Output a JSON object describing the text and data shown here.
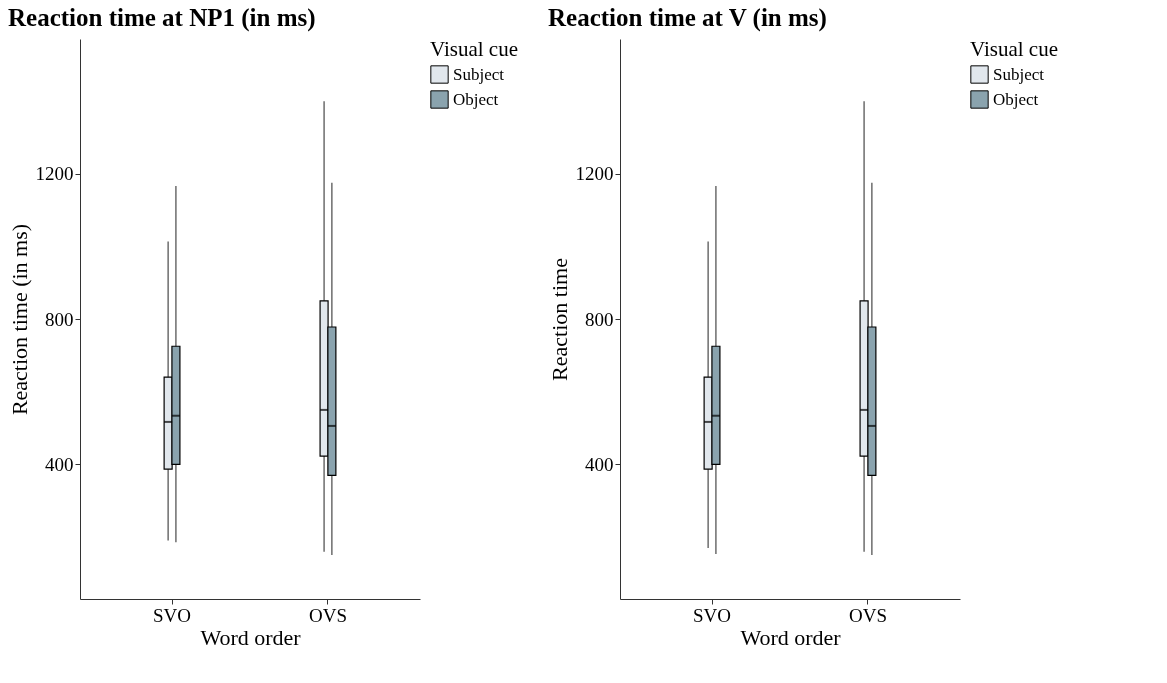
{
  "chart_data": [
    {
      "type": "box",
      "title": "Reaction time at NP1 (in ms)",
      "xlabel": "Word order",
      "ylabel": "Reaction time (in ms)",
      "legend_title": "Visual cue",
      "legend": "right",
      "grid": false,
      "categories": [
        "SVO",
        "OVS"
      ],
      "ylim": [
        30,
        1570
      ],
      "yticks": [
        400,
        800,
        1200
      ],
      "series": [
        {
          "name": "Subject",
          "color": "#e1e7ed",
          "boxes": [
            {
              "low": 191,
              "q1": 387,
              "median": 517,
              "q3": 640,
              "high": 1013
            },
            {
              "low": 160,
              "q1": 423,
              "median": 550,
              "q3": 850,
              "high": 1399
            }
          ]
        },
        {
          "name": "Object",
          "color": "#8aa3ae",
          "boxes": [
            {
              "low": 186,
              "q1": 400,
              "median": 534,
              "q3": 725,
              "high": 1166
            },
            {
              "low": 151,
              "q1": 370,
              "median": 506,
              "q3": 778,
              "high": 1175
            }
          ]
        }
      ]
    },
    {
      "type": "box",
      "title": "Reaction time at V (in ms)",
      "xlabel": "Word order",
      "ylabel": "Reaction time",
      "legend_title": "Visual cue",
      "legend": "right",
      "grid": false,
      "categories": [
        "SVO",
        "OVS"
      ],
      "ylim": [
        30,
        1570
      ],
      "yticks": [
        400,
        800,
        1200
      ],
      "series": [
        {
          "name": "Subject",
          "color": "#e1e7ed",
          "boxes": [
            {
              "low": 170,
              "q1": 387,
              "median": 517,
              "q3": 640,
              "high": 1013
            },
            {
              "low": 160,
              "q1": 423,
              "median": 550,
              "q3": 850,
              "high": 1399
            }
          ]
        },
        {
          "name": "Object",
          "color": "#8aa3ae",
          "boxes": [
            {
              "low": 154,
              "q1": 400,
              "median": 534,
              "q3": 725,
              "high": 1166
            },
            {
              "low": 151,
              "q1": 370,
              "median": 506,
              "q3": 778,
              "high": 1175
            }
          ]
        }
      ]
    }
  ]
}
